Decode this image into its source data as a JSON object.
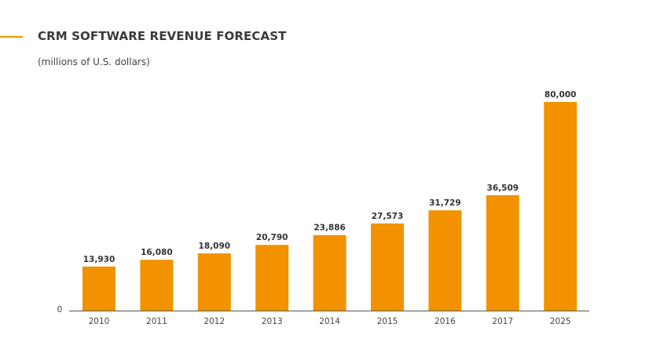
{
  "chart_data": {
    "type": "bar",
    "title": "CRM SOFTWARE REVENUE FORECAST",
    "subtitle": "(millions of U.S. dollars)",
    "categories": [
      "2010",
      "2011",
      "2012",
      "2013",
      "2014",
      "2015",
      "2016",
      "2017",
      "2025"
    ],
    "values": [
      13930,
      16080,
      18090,
      20790,
      23886,
      27573,
      31729,
      36509,
      80000
    ],
    "value_labels": [
      "13,930",
      "16,080",
      "18,090",
      "20,790",
      "23,886",
      "27,573",
      "31,729",
      "36,509",
      "80,000"
    ],
    "y_tick_labels": [
      "0"
    ],
    "xlabel": "",
    "ylabel": "",
    "grid": false,
    "bar_color": "#f29200"
  }
}
